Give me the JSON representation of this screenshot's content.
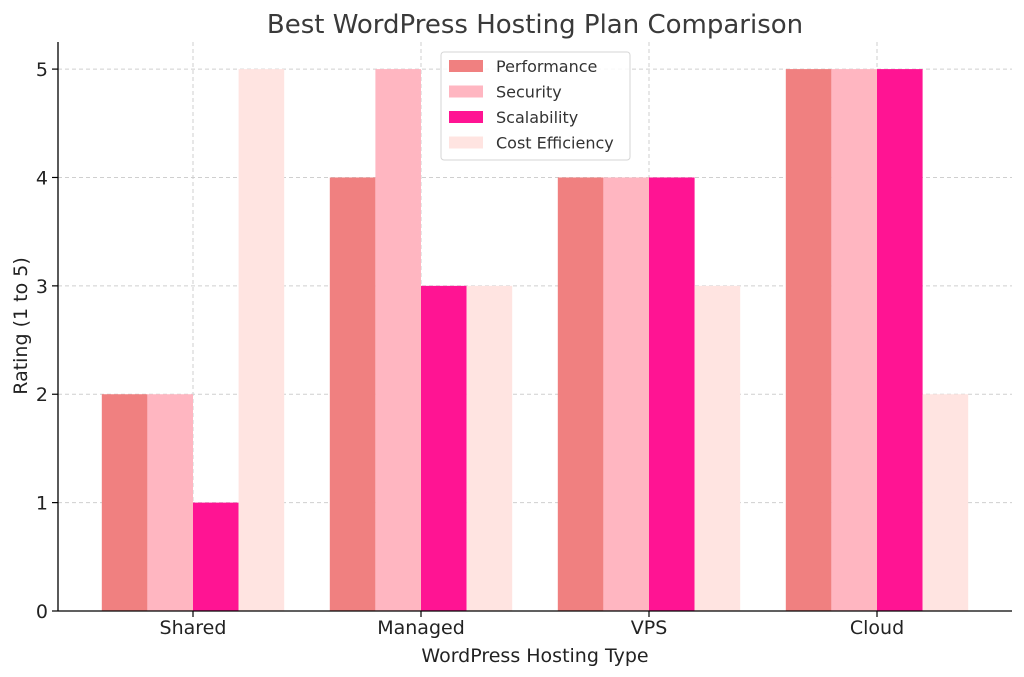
{
  "chart_data": {
    "type": "bar",
    "title": "Best WordPress Hosting Plan Comparison",
    "xlabel": "WordPress Hosting Type",
    "ylabel": "Rating (1 to 5)",
    "categories": [
      "Shared",
      "Managed",
      "VPS",
      "Cloud"
    ],
    "ylim": [
      0,
      5.25
    ],
    "yticks": [
      "0",
      "1",
      "2",
      "3",
      "4",
      "5"
    ],
    "grid": true,
    "legend_position": "top-center",
    "series": [
      {
        "name": "Performance",
        "color": "#F08080",
        "values": [
          2,
          4,
          4,
          5
        ]
      },
      {
        "name": "Security",
        "color": "#FFB6C1",
        "values": [
          2,
          5,
          4,
          5
        ]
      },
      {
        "name": "Scalability",
        "color": "#FF1493",
        "values": [
          1,
          3,
          4,
          5
        ]
      },
      {
        "name": "Cost Efficiency",
        "color": "#FFE4E1",
        "values": [
          5,
          3,
          3,
          2
        ]
      }
    ]
  }
}
